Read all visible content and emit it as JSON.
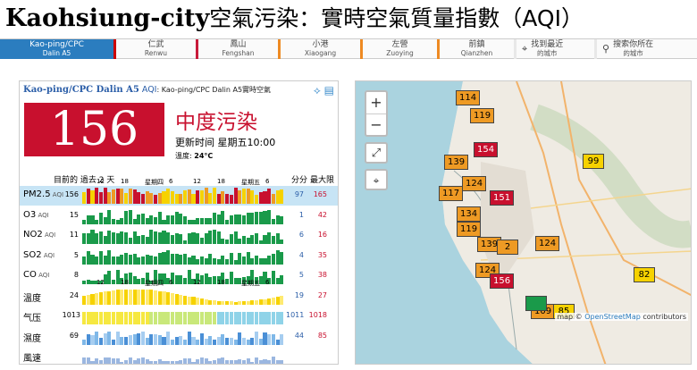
{
  "header": {
    "city": "Kaohsiung-city",
    "subtitle": "空氣污染：實時空氣質量指數（AQI）"
  },
  "tabs": [
    {
      "label": "Kao-ping/CPC",
      "en": "Dalin A5",
      "active": true
    },
    {
      "label": "仁武",
      "en": "Renwu"
    },
    {
      "label": "鳳山",
      "en": "Fengshan"
    },
    {
      "label": "小港",
      "en": "Xiaogang"
    },
    {
      "label": "左營",
      "en": "Zuoying"
    },
    {
      "label": "前鎮",
      "en": "Qianzhen"
    },
    {
      "label": "找到最近",
      "en": "的城市",
      "icon": "locate-icon"
    },
    {
      "label": "搜索你所在",
      "en": "的城市",
      "icon": "search-icon"
    }
  ],
  "panel": {
    "station": "Kao-ping/CPC Dalin A5",
    "aqi_label": "AQI",
    "station_full": "Kao-ping/CPC Dalin A5實時空氣",
    "aqi_value": "156",
    "status": "中度污染",
    "updated": "更新时间 星期五10:00",
    "temperature_label": "溫度:",
    "temperature": "24°C",
    "header_past": "目前的 過去 2 天",
    "header_min": "分分",
    "header_max": "最大限",
    "aqi_color": "#c8102e"
  },
  "rows": [
    {
      "label": "PM2.5",
      "tag": "AQI",
      "value": "156",
      "min": "97",
      "max": "165",
      "highlight": true
    },
    {
      "label": "O3",
      "tag": "AQI",
      "value": "15",
      "min": "1",
      "max": "42"
    },
    {
      "label": "NO2",
      "tag": "AQI",
      "value": "11",
      "min": "6",
      "max": "16"
    },
    {
      "label": "SO2",
      "tag": "AQI",
      "value": "5",
      "min": "4",
      "max": "35"
    },
    {
      "label": "CO",
      "tag": "AQI",
      "value": "8",
      "min": "5",
      "max": "38"
    },
    {
      "label": "溫度",
      "tag": "",
      "value": "24",
      "min": "19",
      "max": "27"
    },
    {
      "label": "气压",
      "tag": "",
      "value": "1013",
      "min": "1011",
      "max": "1018"
    },
    {
      "label": "濕度",
      "tag": "",
      "value": "69",
      "min": "44",
      "max": "85"
    },
    {
      "label": "風速",
      "tag": "",
      "value": "",
      "min": "",
      "max": ""
    }
  ],
  "time_ticks": [
    "12",
    "18",
    "星期四",
    "6",
    "12",
    "18",
    "星期五",
    "6"
  ],
  "map": {
    "zoom_in": "+",
    "zoom_out": "−",
    "attribution_prefix": "map ©",
    "attribution_link": "OpenStreetMap",
    "attribution_suffix": "contributors",
    "markers": [
      {
        "v": "114",
        "c": "org"
      },
      {
        "v": "119",
        "c": "org"
      },
      {
        "v": "154",
        "c": "red"
      },
      {
        "v": "139",
        "c": "org"
      },
      {
        "v": "124",
        "c": "org"
      },
      {
        "v": "117",
        "c": "org"
      },
      {
        "v": "151",
        "c": "red"
      },
      {
        "v": "134",
        "c": "org"
      },
      {
        "v": "119",
        "c": "org"
      },
      {
        "v": "139",
        "c": "org"
      },
      {
        "v": "2",
        "c": "org"
      },
      {
        "v": "124",
        "c": "org"
      },
      {
        "v": "124",
        "c": "org"
      },
      {
        "v": "156",
        "c": "red"
      },
      {
        "v": "99",
        "c": "yel"
      },
      {
        "v": "82",
        "c": "yel"
      },
      {
        "v": "109",
        "c": "org"
      },
      {
        "v": "85",
        "c": "yel"
      },
      {
        "v": "",
        "c": "grn"
      }
    ]
  }
}
